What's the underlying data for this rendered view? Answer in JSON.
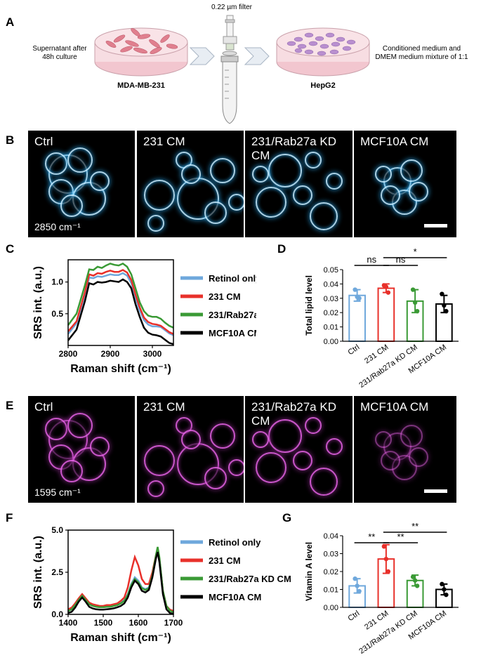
{
  "panel_letters": {
    "a": "A",
    "b": "B",
    "c": "C",
    "d": "D",
    "e": "E",
    "f": "F",
    "g": "G"
  },
  "panel_a": {
    "filter_label": "0.22 µm filter",
    "left_text": "Supernatant after\n48h culture",
    "left_dish_label": "MDA-MB-231",
    "right_dish_label": "HepG2",
    "right_text": "Conditioned medium and\nDMEM medium mixture of 1:1"
  },
  "panel_b": {
    "images": [
      "Ctrl",
      "231 CM",
      "231/Rab27a KD\nCM",
      "MCF10A CM"
    ],
    "wavenumber": "2850 cm⁻¹",
    "colors": {
      "cell": "#bfe9ff",
      "glow": "#2aa3e6"
    }
  },
  "panel_e": {
    "images": [
      "Ctrl",
      "231 CM",
      "231/Rab27a KD\nCM",
      "MCF10A CM"
    ],
    "wavenumber": "1595 cm⁻¹",
    "colors": {
      "cell": "#e060e0",
      "glow": "#8a2a8a"
    }
  },
  "legend": [
    "Retinol only",
    "231 CM",
    "231/Rab27a KD CM",
    "MCF10A CM"
  ],
  "series_colors": [
    "#6fa8dc",
    "#e8302a",
    "#3a9a35",
    "#000000"
  ],
  "chart_data": [
    {
      "type": "line",
      "panel": "C",
      "xlabel": "Raman shift (cm⁻¹)",
      "ylabel": "SRS int. (a.u.)",
      "xlim": [
        2800,
        3050
      ],
      "ylim": [
        0,
        1.35
      ],
      "xticks": [
        2800,
        2900,
        3000
      ],
      "yticks": [
        0.5,
        1.0
      ],
      "x": [
        2800,
        2820,
        2840,
        2850,
        2860,
        2870,
        2880,
        2890,
        2900,
        2910,
        2920,
        2930,
        2940,
        2950,
        2960,
        2970,
        2980,
        2990,
        3000,
        3010,
        3020,
        3030,
        3040,
        3050
      ],
      "series": [
        {
          "name": "Retinol only",
          "values": [
            0.18,
            0.35,
            0.8,
            1.07,
            1.06,
            1.09,
            1.08,
            1.1,
            1.12,
            1.11,
            1.11,
            1.14,
            1.1,
            0.98,
            0.75,
            0.55,
            0.4,
            0.33,
            0.3,
            0.3,
            0.29,
            0.24,
            0.19,
            0.16
          ]
        },
        {
          "name": "231 CM",
          "values": [
            0.22,
            0.38,
            0.84,
            1.12,
            1.1,
            1.14,
            1.13,
            1.16,
            1.18,
            1.16,
            1.16,
            1.19,
            1.15,
            1.03,
            0.8,
            0.6,
            0.44,
            0.37,
            0.34,
            0.33,
            0.31,
            0.26,
            0.21,
            0.18
          ]
        },
        {
          "name": "231/Rab27a KD CM",
          "values": [
            0.32,
            0.5,
            0.95,
            1.2,
            1.19,
            1.24,
            1.22,
            1.26,
            1.29,
            1.27,
            1.26,
            1.29,
            1.24,
            1.12,
            0.9,
            0.68,
            0.54,
            0.47,
            0.45,
            0.45,
            0.42,
            0.36,
            0.31,
            0.28
          ]
        },
        {
          "name": "MCF10A CM",
          "values": [
            0.08,
            0.25,
            0.7,
            0.98,
            0.96,
            1.0,
            0.99,
            1.0,
            1.02,
            1.01,
            1.0,
            1.04,
            1.0,
            0.9,
            0.65,
            0.45,
            0.28,
            0.2,
            0.17,
            0.16,
            0.14,
            0.09,
            0.04,
            0.02
          ]
        }
      ]
    },
    {
      "type": "bar",
      "panel": "D",
      "categories": [
        "Ctrl",
        "231 CM",
        "231/Rab27a KD CM",
        "MCF10A CM"
      ],
      "values": [
        0.032,
        0.037,
        0.028,
        0.026
      ],
      "errors": [
        0.004,
        0.003,
        0.008,
        0.006
      ],
      "points": [
        [
          0.036,
          0.031,
          0.03
        ],
        [
          0.039,
          0.038,
          0.034
        ],
        [
          0.036,
          0.027,
          0.021
        ],
        [
          0.033,
          0.025,
          0.021
        ]
      ],
      "ylabel": "Total lipid level",
      "ylim": [
        0,
        0.05
      ],
      "yticks": [
        0,
        0.01,
        0.02,
        0.03,
        0.04,
        0.05
      ],
      "significance": [
        {
          "from": 0,
          "to": 1,
          "label": "ns"
        },
        {
          "from": 1,
          "to": 2,
          "label": "ns"
        },
        {
          "from": 1,
          "to": 3,
          "label": "*"
        }
      ]
    },
    {
      "type": "line",
      "panel": "F",
      "xlabel": "Raman shift (cm⁻¹)",
      "ylabel": "SRS int. (a.u.)",
      "xlim": [
        1400,
        1700
      ],
      "ylim": [
        0,
        5
      ],
      "xticks": [
        1400,
        1500,
        1600,
        1700
      ],
      "yticks": [
        0.0,
        2.5,
        5.0
      ],
      "x": [
        1400,
        1410,
        1420,
        1430,
        1440,
        1450,
        1460,
        1470,
        1480,
        1490,
        1500,
        1510,
        1520,
        1530,
        1540,
        1550,
        1560,
        1570,
        1580,
        1590,
        1600,
        1610,
        1620,
        1630,
        1640,
        1650,
        1655,
        1660,
        1670,
        1680,
        1690,
        1700
      ],
      "series": [
        {
          "name": "Retinol only",
          "values": [
            0.25,
            0.35,
            0.6,
            0.9,
            1.15,
            0.9,
            0.65,
            0.55,
            0.5,
            0.45,
            0.45,
            0.5,
            0.5,
            0.55,
            0.6,
            0.7,
            0.85,
            1.2,
            1.8,
            2.2,
            2.0,
            1.6,
            1.5,
            1.6,
            2.3,
            3.4,
            3.9,
            3.3,
            1.4,
            0.5,
            0.25,
            0.15
          ]
        },
        {
          "name": "231 CM",
          "values": [
            0.3,
            0.4,
            0.65,
            0.95,
            1.2,
            0.95,
            0.7,
            0.6,
            0.55,
            0.5,
            0.5,
            0.55,
            0.55,
            0.6,
            0.65,
            0.8,
            1.0,
            1.6,
            2.6,
            3.4,
            2.9,
            2.1,
            1.8,
            1.8,
            2.5,
            3.5,
            3.9,
            3.3,
            1.4,
            0.5,
            0.28,
            0.2
          ]
        },
        {
          "name": "231/Rab27a KD CM",
          "values": [
            0.2,
            0.3,
            0.55,
            0.85,
            1.1,
            0.85,
            0.6,
            0.5,
            0.45,
            0.42,
            0.42,
            0.45,
            0.45,
            0.5,
            0.55,
            0.65,
            0.8,
            1.15,
            1.75,
            2.1,
            1.9,
            1.55,
            1.45,
            1.55,
            2.3,
            3.5,
            4.0,
            3.4,
            1.4,
            0.5,
            0.22,
            0.12
          ]
        },
        {
          "name": "MCF10A CM",
          "values": [
            0.08,
            0.15,
            0.4,
            0.75,
            1.0,
            0.75,
            0.45,
            0.35,
            0.3,
            0.28,
            0.28,
            0.3,
            0.32,
            0.36,
            0.42,
            0.5,
            0.65,
            1.0,
            1.6,
            2.0,
            1.8,
            1.4,
            1.3,
            1.45,
            2.2,
            3.3,
            3.7,
            3.1,
            1.2,
            0.3,
            0.08,
            0.02
          ]
        }
      ]
    },
    {
      "type": "bar",
      "panel": "G",
      "categories": [
        "Ctrl",
        "231 CM",
        "231/Rab27a KD CM",
        "MCF10A CM"
      ],
      "values": [
        0.012,
        0.027,
        0.015,
        0.01
      ],
      "errors": [
        0.004,
        0.008,
        0.003,
        0.003
      ],
      "points": [
        [
          0.016,
          0.012,
          0.009
        ],
        [
          0.034,
          0.027,
          0.02
        ],
        [
          0.017,
          0.015,
          0.012
        ],
        [
          0.013,
          0.01,
          0.007
        ]
      ],
      "ylabel": "Vitamin A level",
      "ylim": [
        0,
        0.04
      ],
      "yticks": [
        0,
        0.01,
        0.02,
        0.03,
        0.04
      ],
      "significance": [
        {
          "from": 0,
          "to": 1,
          "label": "**"
        },
        {
          "from": 1,
          "to": 2,
          "label": "**"
        },
        {
          "from": 1,
          "to": 3,
          "label": "**"
        }
      ]
    }
  ]
}
